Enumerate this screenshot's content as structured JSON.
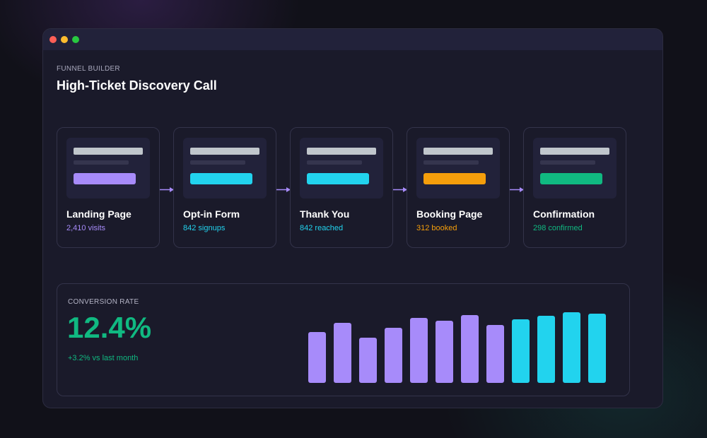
{
  "header": {
    "kicker": "FUNNEL BUILDER",
    "title": "High-Ticket Discovery Call"
  },
  "colors": {
    "purple": "#a78bfa",
    "cyan": "#22d3ee",
    "amber": "#f59e0b",
    "green": "#10b981"
  },
  "steps": [
    {
      "name": "Landing Page",
      "stat": "2,410 visits",
      "accent": "#a78bfa"
    },
    {
      "name": "Opt-in Form",
      "stat": "842 signups",
      "accent": "#22d3ee"
    },
    {
      "name": "Thank You",
      "stat": "842 reached",
      "accent": "#22d3ee"
    },
    {
      "name": "Booking Page",
      "stat": "312 booked",
      "accent": "#f59e0b"
    },
    {
      "name": "Confirmation",
      "stat": "298 confirmed",
      "accent": "#10b981"
    }
  ],
  "conversion": {
    "label": "CONVERSION RATE",
    "value": "12.4%",
    "delta": "+3.2% vs last month"
  },
  "chart_data": {
    "type": "bar",
    "ylim": [
      0,
      100
    ],
    "values": [
      72,
      85,
      64,
      78,
      92,
      88,
      96,
      82,
      90,
      95,
      100,
      98
    ],
    "colors": [
      "#a78bfa",
      "#a78bfa",
      "#a78bfa",
      "#a78bfa",
      "#a78bfa",
      "#a78bfa",
      "#a78bfa",
      "#a78bfa",
      "#22d3ee",
      "#22d3ee",
      "#22d3ee",
      "#22d3ee"
    ]
  }
}
